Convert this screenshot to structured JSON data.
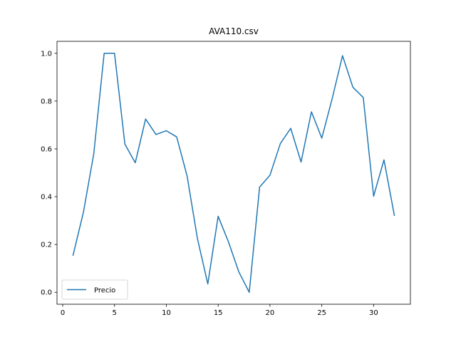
{
  "chart_data": {
    "type": "line",
    "title": "AVA110.csv",
    "xlabel": "",
    "ylabel": "",
    "xlim": [
      -0.55,
      33.55
    ],
    "ylim": [
      -0.05,
      1.05
    ],
    "xticks": [
      0,
      5,
      10,
      15,
      20,
      25,
      30
    ],
    "yticks": [
      0.0,
      0.2,
      0.4,
      0.6,
      0.8,
      1.0
    ],
    "xtick_labels": [
      "0",
      "5",
      "10",
      "15",
      "20",
      "25",
      "30"
    ],
    "ytick_labels": [
      "0.0",
      "0.2",
      "0.4",
      "0.6",
      "0.8",
      "1.0"
    ],
    "grid": false,
    "legend_position": "lower-left",
    "series": [
      {
        "name": "Precio",
        "color": "#1f77b4",
        "x": [
          1,
          2,
          3,
          4,
          5,
          6,
          7,
          8,
          9,
          10,
          11,
          12,
          13,
          14,
          15,
          16,
          17,
          18,
          19,
          20,
          21,
          22,
          23,
          24,
          25,
          26,
          27,
          28,
          29,
          30,
          31,
          32
        ],
        "y": [
          0.155,
          0.335,
          0.58,
          1.0,
          1.0,
          0.62,
          0.542,
          0.725,
          0.66,
          0.676,
          0.65,
          0.487,
          0.225,
          0.035,
          0.318,
          0.21,
          0.085,
          0.0,
          0.44,
          0.49,
          0.622,
          0.686,
          0.545,
          0.755,
          0.645,
          0.81,
          0.99,
          0.858,
          0.815,
          0.402,
          0.554,
          0.322
        ]
      }
    ]
  }
}
